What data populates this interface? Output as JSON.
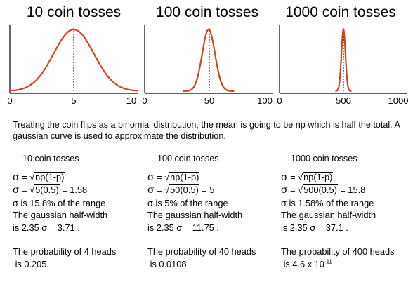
{
  "plots": [
    {
      "title": "10 coin tosses",
      "ticks": [
        "0",
        "5",
        "10"
      ]
    },
    {
      "title": "100 coin tosses",
      "ticks": [
        "0",
        "50",
        "100"
      ]
    },
    {
      "title": "1000 coin tosses",
      "ticks": [
        "0",
        "500",
        "1000"
      ]
    }
  ],
  "chart_data": [
    {
      "type": "line",
      "title": "10 coin tosses",
      "x_range": [
        0,
        10
      ],
      "mean": 5,
      "sigma": 1.58,
      "xticks": [
        0,
        5,
        10
      ]
    },
    {
      "type": "line",
      "title": "100 coin tosses",
      "x_range": [
        0,
        100
      ],
      "mean": 50,
      "sigma": 5,
      "xticks": [
        0,
        50,
        100
      ]
    },
    {
      "type": "line",
      "title": "1000 coin tosses",
      "x_range": [
        0,
        1000
      ],
      "mean": 500,
      "sigma": 15.8,
      "xticks": [
        0,
        500,
        1000
      ]
    }
  ],
  "explanation": "Treating the coin flips as a binomial distribution, the mean is going to be np which is half the total. A gaussian curve is used to approximate the distribution.",
  "columns": [
    {
      "header": "10 coin tosses",
      "sigma_symbol": "σ",
      "formula_radicand": "np(1-p)",
      "numeric_radicand": "5(0.5)",
      "sigma_value": "= 1.58",
      "range_text": "σ is 15.8% of the range",
      "halfwidth_line1": "The gaussian half-width",
      "halfwidth_line2": "is 2.35 σ = 3.71 .",
      "prob_line1": "The probability of 4 heads",
      "prob_line2": "is 0.205",
      "prob_exp": ""
    },
    {
      "header": "100 coin tosses",
      "sigma_symbol": "σ",
      "formula_radicand": "np(1-p)",
      "numeric_radicand": "50(0.5)",
      "sigma_value": "= 5",
      "range_text": "σ is 5% of the range",
      "halfwidth_line1": "The gaussian half-width",
      "halfwidth_line2": "is 2.35 σ = 11.75 .",
      "prob_line1": "The probability of 40 heads",
      "prob_line2": "is 0.0108",
      "prob_exp": ""
    },
    {
      "header": "1000 coin tosses",
      "sigma_symbol": "σ",
      "formula_radicand": "np(1-p)",
      "numeric_radicand": "500(0.5)",
      "sigma_value": "= 15.8",
      "range_text": "σ is 1.58% of the range",
      "halfwidth_line1": "The gaussian half-width",
      "halfwidth_line2": "is 2.35 σ = 37.1 .",
      "prob_line1": "The probability of 400 heads",
      "prob_line2": "is 4.6 x 10",
      "prob_exp": "-11"
    }
  ],
  "colors": {
    "curve": "#d8431e",
    "axis": "#000000",
    "dotted": "#000000"
  }
}
